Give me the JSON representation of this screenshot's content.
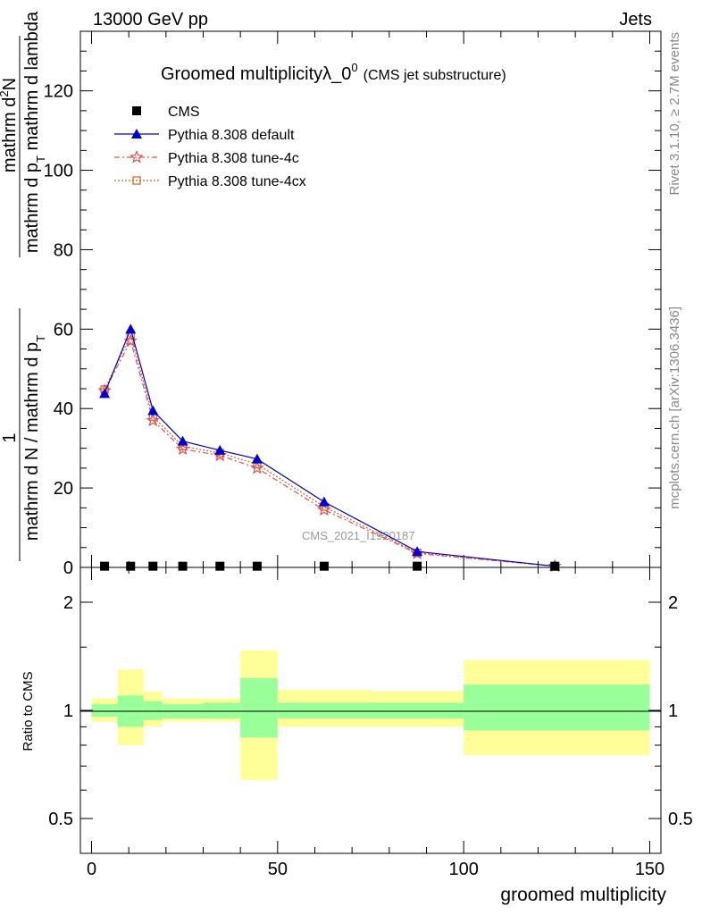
{
  "header": {
    "left": "13000 GeV pp",
    "right": "Jets"
  },
  "side_labels": {
    "rivet": "Rivet 3.1.10, ≥ 2.7M events",
    "mcplots": "mcplots.cern.ch [arXiv:1306.3436]"
  },
  "chart_data": {
    "type": "line",
    "title": "Groomed multiplicityλ_0",
    "title_sup": "0",
    "subtitle": "(CMS jet substructure)",
    "watermark": "CMS_2021_I1920187",
    "xlabel": "groomed multiplicity",
    "ylabel_upper_numerator_1": "mathrm d",
    "ylabel_upper_numerator_sup": "2",
    "ylabel_upper_numerator_2": "N",
    "ylabel_upper_denominator": "mathrm d p",
    "ylabel_upper_denominator_sub": "T",
    "ylabel_upper_denominator_2": " mathrm d lambda",
    "ylabel_lower_numerator": "1",
    "ylabel_lower_denominator": "mathrm d N / mathrm d p",
    "ylabel_lower_denominator_sub": "T",
    "ylabel_ratio": "Ratio to CMS",
    "xlim": [
      -3,
      153
    ],
    "ylim": [
      0,
      135
    ],
    "ratio_ylim": [
      0.4,
      2.5
    ],
    "x_ticks": [
      0,
      50,
      100,
      150
    ],
    "x_tick_labels": [
      "0",
      "50",
      "100",
      "150"
    ],
    "y_ticks": [
      0,
      20,
      40,
      60,
      80,
      100,
      120
    ],
    "y_tick_labels": [
      "0",
      "20",
      "40",
      "60",
      "80",
      "100",
      "120"
    ],
    "ratio_ticks": [
      0.5,
      1,
      2
    ],
    "ratio_tick_labels": [
      "0.5",
      "1",
      "2"
    ],
    "legend_position": "top-left",
    "series": [
      {
        "name": "CMS",
        "color": "#000000",
        "marker": "square",
        "x": [
          3.5,
          10.5,
          16.5,
          24.5,
          34.5,
          44.5,
          62.5,
          87.5,
          124.5
        ],
        "y": [
          0.3,
          0.3,
          0.3,
          0.3,
          0.3,
          0.3,
          0.3,
          0.3,
          0.3
        ]
      },
      {
        "name": "Pythia 8.308 default",
        "color": "#0000cc",
        "marker": "triangle",
        "dash": "",
        "x": [
          3.5,
          10.5,
          16.5,
          24.5,
          34.5,
          44.5,
          62.5,
          87.5,
          124.5
        ],
        "y": [
          43.8,
          60.0,
          39.5,
          31.8,
          29.5,
          27.3,
          16.5,
          4.0,
          0.3
        ]
      },
      {
        "name": "Pythia 8.308 tune-4c",
        "color": "#e05050",
        "marker": "star",
        "dash": "6,3,2,3",
        "x": [
          3.5,
          10.5,
          16.5,
          24.5,
          34.5,
          44.5,
          62.5,
          87.5,
          124.5
        ],
        "y": [
          44.5,
          57.0,
          37.0,
          29.8,
          28.2,
          25.0,
          14.5,
          3.5,
          0.3
        ]
      },
      {
        "name": "Pythia 8.308 tune-4cx",
        "color": "#d06020",
        "marker": "open-square",
        "dash": "2,2",
        "x": [
          3.5,
          10.5,
          16.5,
          24.5,
          34.5,
          44.5,
          62.5,
          87.5,
          124.5
        ],
        "y": [
          44.8,
          58.5,
          38.0,
          30.5,
          28.8,
          26.0,
          15.3,
          3.7,
          0.3
        ]
      }
    ],
    "ratio_bands": {
      "edges": [
        0,
        7,
        14,
        19,
        30,
        40,
        50,
        75,
        100,
        150
      ],
      "inner_lo": [
        0.96,
        0.9,
        0.94,
        0.95,
        0.95,
        0.84,
        0.95,
        0.95,
        0.88
      ],
      "inner_hi": [
        1.04,
        1.1,
        1.06,
        1.04,
        1.05,
        1.23,
        1.05,
        1.05,
        1.18
      ],
      "outer_lo": [
        0.93,
        0.8,
        0.9,
        0.93,
        0.93,
        0.64,
        0.9,
        0.9,
        0.75
      ],
      "outer_hi": [
        1.08,
        1.3,
        1.13,
        1.08,
        1.08,
        1.47,
        1.14,
        1.13,
        1.38
      ],
      "inner_color": "#99ff99",
      "outer_color": "#ffff99"
    }
  }
}
